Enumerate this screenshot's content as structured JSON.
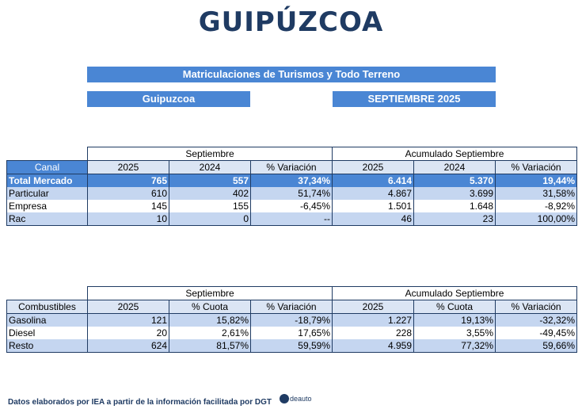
{
  "title": "GUIPÚZCOA",
  "banner_main": "Matriculaciones de Turismos y Todo Terreno",
  "banner_region": "Guipuzcoa",
  "banner_period": "SEPTIEMBRE 2025",
  "table1": {
    "group_left": "Septiembre",
    "group_right": "Acumulado Septiembre",
    "headers": [
      "Canal",
      "2025",
      "2024",
      "% Variación",
      "2025",
      "2024",
      "% Variación"
    ],
    "rows": [
      [
        "Total Mercado",
        "765",
        "557",
        "37,34%",
        "6.414",
        "5.370",
        "19,44%"
      ],
      [
        "Particular",
        "610",
        "402",
        "51,74%",
        "4.867",
        "3.699",
        "31,58%"
      ],
      [
        "Empresa",
        "145",
        "155",
        "-6,45%",
        "1.501",
        "1.648",
        "-8,92%"
      ],
      [
        "Rac",
        "10",
        "0",
        "--",
        "46",
        "23",
        "100,00%"
      ]
    ]
  },
  "table2": {
    "group_left": "Septiembre",
    "group_right": "Acumulado Septiembre",
    "headers": [
      "Combustibles",
      "2025",
      "% Cuota",
      "% Variación",
      "2025",
      "% Cuota",
      "% Variación"
    ],
    "rows": [
      [
        "Gasolina",
        "121",
        "15,82%",
        "-18,79%",
        "1.227",
        "19,13%",
        "-32,32%"
      ],
      [
        "Diesel",
        "20",
        "2,61%",
        "17,65%",
        "228",
        "3,55%",
        "-49,45%"
      ],
      [
        "Resto",
        "624",
        "81,57%",
        "59,59%",
        "4.959",
        "77,32%",
        "59,66%"
      ]
    ]
  },
  "footer": "Datos elaborados por IEA a partir de la información facilitada por DGT",
  "logo_text": "deauto",
  "colors": {
    "accent": "#4a86d4",
    "dark": "#1f3b63",
    "alt_row": "#c5d6f0",
    "header_bg": "#dbe5f4"
  }
}
